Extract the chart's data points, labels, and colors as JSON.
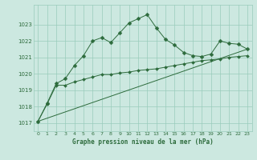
{
  "title": "Graphe pression niveau de la mer (hPa)",
  "bg_color": "#cce8e0",
  "grid_color": "#99ccbb",
  "line_color": "#2d6b3c",
  "marker_color": "#2d6b3c",
  "xlim": [
    -0.5,
    23.5
  ],
  "ylim": [
    1016.5,
    1024.2
  ],
  "yticks": [
    1017,
    1018,
    1019,
    1020,
    1021,
    1022,
    1023
  ],
  "xticks": [
    0,
    1,
    2,
    3,
    4,
    5,
    6,
    7,
    8,
    9,
    10,
    11,
    12,
    13,
    14,
    15,
    16,
    17,
    18,
    19,
    20,
    21,
    22,
    23
  ],
  "series1_x": [
    0,
    1,
    2,
    3,
    4,
    5,
    6,
    7,
    8,
    9,
    10,
    11,
    12,
    13,
    14,
    15,
    16,
    17,
    18,
    19,
    20,
    21,
    22,
    23
  ],
  "series1_y": [
    1017.1,
    1018.2,
    1019.4,
    1019.7,
    1020.5,
    1021.1,
    1022.0,
    1022.2,
    1021.9,
    1022.5,
    1023.1,
    1023.35,
    1023.6,
    1022.8,
    1022.1,
    1021.75,
    1021.3,
    1021.1,
    1021.05,
    1021.2,
    1022.0,
    1021.85,
    1021.8,
    1021.5
  ],
  "series2_x": [
    0,
    1,
    2,
    3,
    4,
    5,
    6,
    7,
    8,
    9,
    10,
    11,
    12,
    13,
    14,
    15,
    16,
    17,
    18,
    19,
    20,
    21,
    22,
    23
  ],
  "series2_y": [
    1017.1,
    1018.15,
    1019.3,
    1019.3,
    1019.5,
    1019.65,
    1019.8,
    1019.95,
    1019.95,
    1020.05,
    1020.1,
    1020.2,
    1020.25,
    1020.3,
    1020.4,
    1020.5,
    1020.6,
    1020.7,
    1020.8,
    1020.85,
    1020.9,
    1021.0,
    1021.05,
    1021.1
  ],
  "series3_x": [
    0,
    23
  ],
  "series3_y": [
    1017.1,
    1021.5
  ]
}
